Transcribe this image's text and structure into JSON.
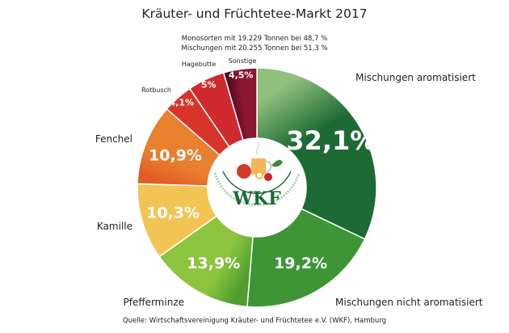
{
  "chart_data": {
    "type": "pie",
    "variant": "donut",
    "title": "Kräuter- und Früchtetee-Markt 2017",
    "subtitle": [
      "Monosorten mit 19.229 Tonnen bei 48,7 %",
      "Mischungen mit 20.255 Tonnen bei 51,3 %"
    ],
    "source": "Quelle: Wirtschaftsvereinigung Kräuter- und Früchtetee e.V. (WKF), Hamburg",
    "slices": [
      {
        "name": "Mischungen aromatisiert",
        "value": 32.1,
        "label": "32,1%",
        "color": "#1e6a34",
        "color2": "#8fc07c"
      },
      {
        "name": "Mischungen nicht aromatisiert",
        "value": 19.2,
        "label": "19,2%",
        "color": "#3d9535",
        "color2": "#3d9535"
      },
      {
        "name": "Pfefferminze",
        "value": 13.9,
        "label": "13,9%",
        "color": "#8cc43e",
        "color2": "#4f9e30"
      },
      {
        "name": "Kamille",
        "value": 10.3,
        "label": "10,3%",
        "color": "#f1c453",
        "color2": "#f1c453"
      },
      {
        "name": "Fenchel",
        "value": 10.9,
        "label": "10,9%",
        "color": "#e9802e",
        "color2": "#e35e25"
      },
      {
        "name": "Rotbusch",
        "value": 4.1,
        "label": "4,1%",
        "color": "#d9342a",
        "color2": "#d9342a"
      },
      {
        "name": "Hagebutte",
        "value": 5,
        "label": "5%",
        "color": "#cf2a2d",
        "color2": "#cf2a2d"
      },
      {
        "name": "Sonstige",
        "value": 4.5,
        "label": "4,5%",
        "color": "#8a1630",
        "color2": "#5c0b26"
      }
    ]
  },
  "logo": {
    "acronym": "WKF",
    "name": "Wirtschaftsvereinigung Kräuter- und Früchtetee e.V."
  }
}
